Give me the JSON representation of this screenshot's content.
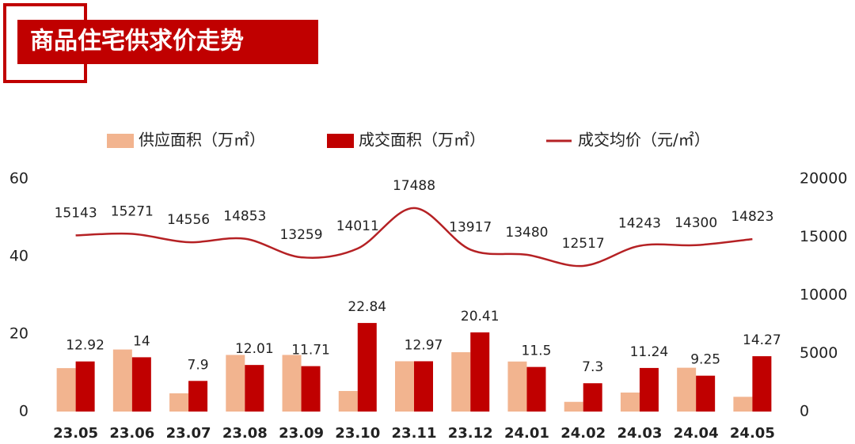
{
  "chart_data": {
    "type": "bar-line",
    "title": "商品住宅供求价走势",
    "categories": [
      "23.05",
      "23.06",
      "23.07",
      "23.08",
      "23.09",
      "23.10",
      "23.11",
      "23.12",
      "24.01",
      "24.02",
      "24.03",
      "24.04",
      "24.05"
    ],
    "series": [
      {
        "name": "供应面积（万㎡）",
        "type": "bar",
        "color": "#f2b48f",
        "values": [
          11.2,
          16,
          4.7,
          14.6,
          14.6,
          5.3,
          12.97,
          15.3,
          12.9,
          2.5,
          4.9,
          11.3,
          3.8
        ]
      },
      {
        "name": "成交面积（万㎡）",
        "type": "bar",
        "color": "#c00000",
        "values": [
          12.92,
          14,
          7.9,
          12.01,
          11.71,
          22.84,
          12.97,
          20.41,
          11.5,
          7.3,
          11.24,
          9.25,
          14.27
        ],
        "show_labels": true
      },
      {
        "name": "成交均价（元/㎡）",
        "type": "line",
        "axis": "y2",
        "color": "#b52124",
        "values": [
          15143,
          15271,
          14556,
          14853,
          13259,
          14011,
          17488,
          13917,
          13480,
          12517,
          14243,
          14300,
          14823
        ],
        "show_labels": true
      }
    ],
    "ylim": [
      0,
      60
    ],
    "yticks": [
      0,
      20,
      40,
      60
    ],
    "y2lim": [
      0,
      20000
    ],
    "y2ticks": [
      0,
      5000,
      10000,
      15000,
      20000
    ],
    "grid": false
  }
}
